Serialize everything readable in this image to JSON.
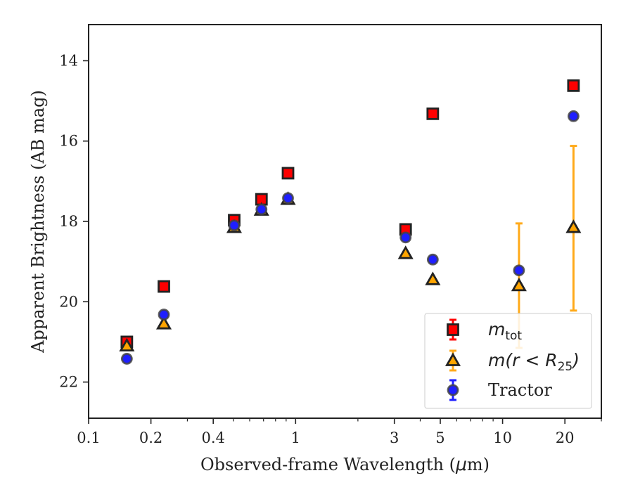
{
  "chart_data": {
    "type": "scatter",
    "xscale": "log",
    "xlabel_prefix": "Observed-frame Wavelength (",
    "xlabel_mu": "μ",
    "xlabel_suffix": "m)",
    "ylabel": "Apparent Brightness (AB mag)",
    "xlim": [
      0.1,
      30
    ],
    "ylim": [
      22.9,
      13.1
    ],
    "y_inverted": true,
    "grid": false,
    "legend_position": "lower-right",
    "x_ticks": [
      {
        "value": 0.1,
        "label": "0.1"
      },
      {
        "value": 0.2,
        "label": "0.2"
      },
      {
        "value": 0.4,
        "label": "0.4"
      },
      {
        "value": 1,
        "label": "1"
      },
      {
        "value": 3,
        "label": "3"
      },
      {
        "value": 5,
        "label": "5"
      },
      {
        "value": 10,
        "label": "10"
      },
      {
        "value": 20,
        "label": "20"
      }
    ],
    "x_minor_ticks": [
      0.3,
      0.5,
      0.6,
      0.7,
      0.8,
      0.9,
      2,
      4,
      6,
      7,
      8,
      9,
      30
    ],
    "y_ticks": [
      {
        "value": 14,
        "label": "14"
      },
      {
        "value": 16,
        "label": "16"
      },
      {
        "value": 18,
        "label": "18"
      },
      {
        "value": 20,
        "label": "20"
      },
      {
        "value": 22,
        "label": "22"
      }
    ],
    "series": [
      {
        "name": "m_tot",
        "legend_main": "m",
        "legend_sub": "tot",
        "marker": "square",
        "color": "#ff0000",
        "errbar_color": "#ff0000",
        "points": [
          {
            "x": 0.153,
            "y": 21.0
          },
          {
            "x": 0.231,
            "y": 19.62
          },
          {
            "x": 0.505,
            "y": 17.97
          },
          {
            "x": 0.684,
            "y": 17.45
          },
          {
            "x": 0.919,
            "y": 16.8
          },
          {
            "x": 3.4,
            "y": 18.2
          },
          {
            "x": 4.6,
            "y": 15.32
          },
          {
            "x": 22.0,
            "y": 14.62
          }
        ]
      },
      {
        "name": "m(r < R25)",
        "legend_main": "m",
        "legend_mid": "(r < R",
        "legend_sub": "25",
        "legend_tail": ")",
        "marker": "triangle",
        "color": "#ffa500",
        "errbar_color": "#ffaa1a",
        "points": [
          {
            "x": 0.153,
            "y": 21.1
          },
          {
            "x": 0.231,
            "y": 20.55
          },
          {
            "x": 0.505,
            "y": 18.15
          },
          {
            "x": 0.684,
            "y": 17.72
          },
          {
            "x": 0.919,
            "y": 17.45
          },
          {
            "x": 3.4,
            "y": 18.8
          },
          {
            "x": 4.6,
            "y": 19.45
          },
          {
            "x": 12.0,
            "y": 19.6,
            "yerr_low": 18.05,
            "yerr_high": 21.15
          },
          {
            "x": 22.0,
            "y": 18.15,
            "yerr_low": 16.12,
            "yerr_high": 20.22
          }
        ]
      },
      {
        "name": "Tractor",
        "legend_main": "Tractor",
        "marker": "circle",
        "color": "#1f1fff",
        "errbar_color": "#1f1fff",
        "points": [
          {
            "x": 0.153,
            "y": 21.42
          },
          {
            "x": 0.231,
            "y": 20.32
          },
          {
            "x": 0.505,
            "y": 18.1
          },
          {
            "x": 0.684,
            "y": 17.7
          },
          {
            "x": 0.919,
            "y": 17.42
          },
          {
            "x": 3.4,
            "y": 18.4
          },
          {
            "x": 4.6,
            "y": 18.95
          },
          {
            "x": 12.0,
            "y": 19.22
          },
          {
            "x": 22.0,
            "y": 15.38
          }
        ]
      }
    ]
  }
}
